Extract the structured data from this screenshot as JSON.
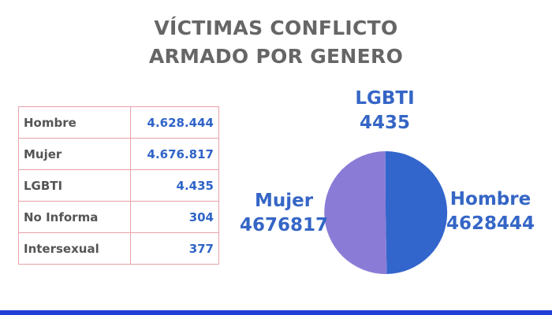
{
  "title_lines": [
    "VÍCTIMAS CONFLICTO",
    "ARMADO POR GENERO"
  ],
  "table": {
    "rows": [
      {
        "label": "Hombre",
        "value": "4.628.444"
      },
      {
        "label": "Mujer",
        "value": "4.676.817"
      },
      {
        "label": "LGBTI",
        "value": "4.435"
      },
      {
        "label": "No Informa",
        "value": "304"
      },
      {
        "label": "Intersexual",
        "value": "377"
      }
    ]
  },
  "chart_data": {
    "type": "pie",
    "title": "VÍCTIMAS CONFLICTO ARMADO POR GENERO",
    "slices": [
      {
        "name": "Hombre",
        "value": 4628444,
        "display": "4628444",
        "color": "#3366cc"
      },
      {
        "name": "Mujer",
        "value": 4676817,
        "display": "4676817",
        "color": "#8a7cd6"
      },
      {
        "name": "LGBTI",
        "value": 4435,
        "display": "4435",
        "color": "#3366cc"
      }
    ],
    "start": "top",
    "direction": "clockwise"
  },
  "colors": {
    "title": "#666666",
    "table_border": "#e8a3a8",
    "table_label": "#555555",
    "table_value": "#2f64c8",
    "pie_label": "#3566c6",
    "bottom_bar": "#1f3fd6"
  }
}
